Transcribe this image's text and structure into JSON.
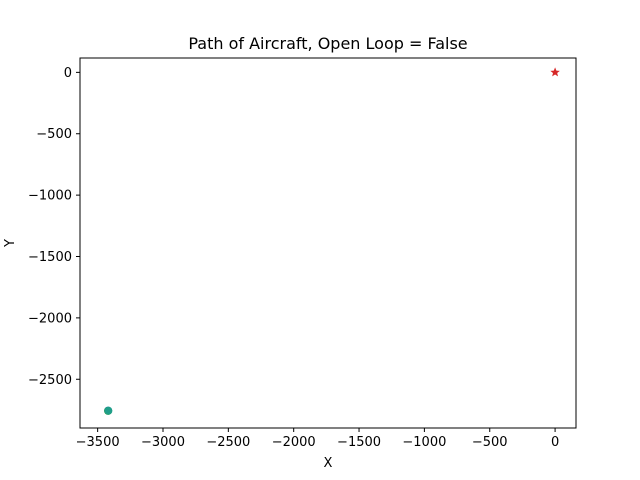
{
  "chart_data": {
    "type": "scatter",
    "title": "Path of Aircraft, Open Loop = False",
    "xlabel": "X",
    "ylabel": "Y",
    "xlim": [
      -3635,
      160
    ],
    "ylim": [
      -2897,
      117
    ],
    "x_ticks": [
      -3500,
      -3000,
      -2500,
      -2000,
      -1500,
      -1000,
      -500,
      0
    ],
    "x_tick_labels": [
      "−3500",
      "−3000",
      "−2500",
      "−2000",
      "−1500",
      "−1000",
      "−500",
      "0"
    ],
    "y_ticks": [
      0,
      -500,
      -1000,
      -1500,
      -2000,
      -2500
    ],
    "y_tick_labels": [
      "0",
      "−500",
      "−1000",
      "−1500",
      "−2000",
      "−2500"
    ],
    "grid": false,
    "legend": "none",
    "series": [
      {
        "marker": "circle",
        "color": "#1f77b4",
        "points": [
          {
            "x": -3420,
            "y": -2755
          }
        ]
      },
      {
        "marker": "circle",
        "color": "#2ca02c",
        "points": [
          {
            "x": -3420,
            "y": -2758
          }
        ]
      },
      {
        "marker": "circle",
        "color": "#1f9e89",
        "points": [
          {
            "x": -3418,
            "y": -2756
          }
        ]
      },
      {
        "marker": "star",
        "color": "#d62728",
        "points": [
          {
            "x": 0,
            "y": 0
          }
        ]
      }
    ]
  }
}
